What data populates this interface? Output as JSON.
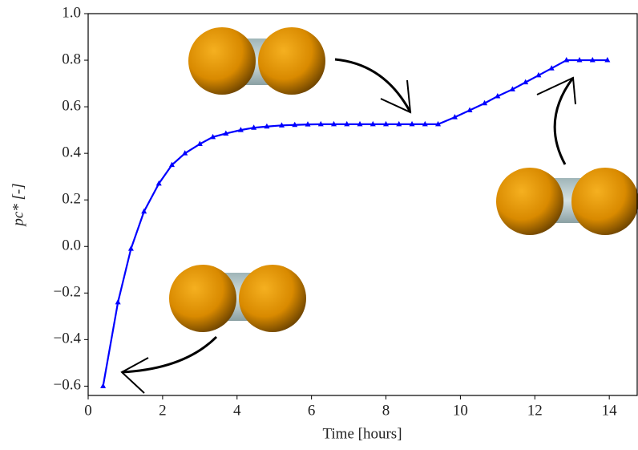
{
  "chart_data": {
    "type": "line",
    "x_label": "Time [hours]",
    "y_label": "pc* [-]",
    "x": [
      0.4,
      0.8,
      1.15,
      1.5,
      1.9,
      2.25,
      2.6,
      3.0,
      3.35,
      3.7,
      4.1,
      4.45,
      4.8,
      5.2,
      5.55,
      5.9,
      6.25,
      6.6,
      6.95,
      7.3,
      7.65,
      8.0,
      8.35,
      8.7,
      9.05,
      9.4,
      9.85,
      10.25,
      10.65,
      11.0,
      11.4,
      11.75,
      12.1,
      12.45,
      12.85,
      13.2,
      13.55,
      13.95
    ],
    "series": [
      {
        "color": "#0000ff",
        "values": [
          -0.6,
          -0.24,
          -0.01,
          0.15,
          0.27,
          0.35,
          0.4,
          0.44,
          0.47,
          0.485,
          0.5,
          0.51,
          0.515,
          0.52,
          0.522,
          0.524,
          0.525,
          0.525,
          0.525,
          0.525,
          0.525,
          0.525,
          0.525,
          0.525,
          0.525,
          0.525,
          0.555,
          0.585,
          0.615,
          0.645,
          0.675,
          0.705,
          0.735,
          0.765,
          0.8,
          0.8,
          0.8,
          0.8
        ]
      }
    ],
    "xlim": [
      0,
      14.75
    ],
    "ylim": [
      -0.64,
      1.0
    ],
    "xticks": [
      0,
      2,
      4,
      6,
      8,
      10,
      12,
      14
    ],
    "yticks": [
      {
        "value": -0.6,
        "label": "−0.6"
      },
      {
        "value": -0.4,
        "label": "−0.4"
      },
      {
        "value": -0.2,
        "label": "−0.2"
      },
      {
        "value": 0,
        "label": "0.0"
      },
      {
        "value": 0.2,
        "label": "0.2"
      },
      {
        "value": 0.4,
        "label": "0.4"
      },
      {
        "value": 0.6,
        "label": "0.6"
      },
      {
        "value": 0.8,
        "label": "0.8"
      },
      {
        "value": 1.0,
        "label": "1.0"
      }
    ]
  }
}
